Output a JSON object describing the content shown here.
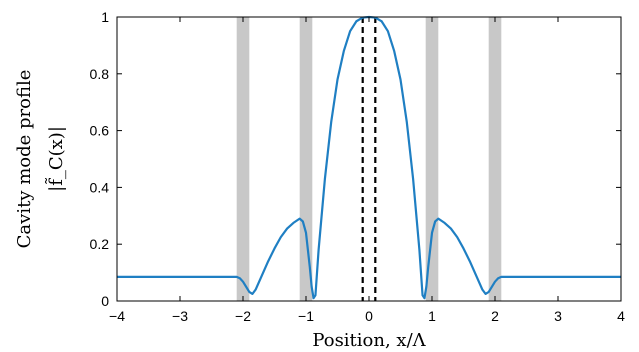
{
  "chart_data": {
    "type": "line",
    "xlabel": "Position, x/Λ",
    "ylabel_line1": "Cavity mode profile",
    "ylabel_line2": "|f̃_C(x)|",
    "xlim": [
      -4,
      4
    ],
    "ylim": [
      0,
      1
    ],
    "xticks": [
      -4,
      -3,
      -2,
      -1,
      0,
      1,
      2,
      3,
      4
    ],
    "xtick_labels": [
      "−4",
      "−3",
      "−2",
      "−1",
      "0",
      "1",
      "2",
      "3",
      "4"
    ],
    "yticks": [
      0,
      0.2,
      0.4,
      0.6,
      0.8,
      1
    ],
    "ytick_labels": [
      "0",
      "0.2",
      "0.4",
      "0.6",
      "0.8",
      "1"
    ],
    "grid": false,
    "shaded_bands": [
      [
        -2.1,
        -1.9
      ],
      [
        -1.1,
        -0.9
      ],
      [
        0.9,
        1.1
      ],
      [
        1.9,
        2.1
      ]
    ],
    "vlines_dashed": [
      -0.1,
      0.1
    ],
    "colors": {
      "line": "#1f7fc3",
      "band": "#c8c8c8",
      "dashed": "#000000"
    },
    "series": [
      {
        "x": [
          -4.0,
          -2.1,
          -2.05,
          -2.0,
          -1.95,
          -1.9,
          -1.85,
          -1.8,
          -1.7,
          -1.6,
          -1.5,
          -1.4,
          -1.3,
          -1.2,
          -1.1,
          -1.05,
          -1.0,
          -0.97,
          -0.94,
          -0.91,
          -0.88,
          -0.85,
          -0.8,
          -0.7,
          -0.6,
          -0.5,
          -0.4,
          -0.3,
          -0.2,
          -0.1,
          0.0,
          0.1,
          0.2,
          0.3,
          0.4,
          0.5,
          0.6,
          0.7,
          0.8,
          0.85,
          0.88,
          0.91,
          0.94,
          0.97,
          1.0,
          1.05,
          1.1,
          1.2,
          1.3,
          1.4,
          1.5,
          1.6,
          1.7,
          1.8,
          1.85,
          1.9,
          1.95,
          2.0,
          2.05,
          2.1,
          4.0
        ],
        "y": [
          0.085,
          0.085,
          0.08,
          0.068,
          0.05,
          0.032,
          0.025,
          0.04,
          0.09,
          0.14,
          0.185,
          0.225,
          0.255,
          0.275,
          0.29,
          0.28,
          0.24,
          0.18,
          0.12,
          0.05,
          0.01,
          0.02,
          0.18,
          0.43,
          0.63,
          0.78,
          0.88,
          0.95,
          0.985,
          0.998,
          1.0,
          0.998,
          0.985,
          0.95,
          0.88,
          0.78,
          0.63,
          0.43,
          0.18,
          0.02,
          0.01,
          0.05,
          0.12,
          0.18,
          0.24,
          0.28,
          0.29,
          0.275,
          0.255,
          0.225,
          0.185,
          0.14,
          0.09,
          0.04,
          0.025,
          0.032,
          0.05,
          0.068,
          0.08,
          0.085,
          0.085
        ]
      }
    ]
  }
}
